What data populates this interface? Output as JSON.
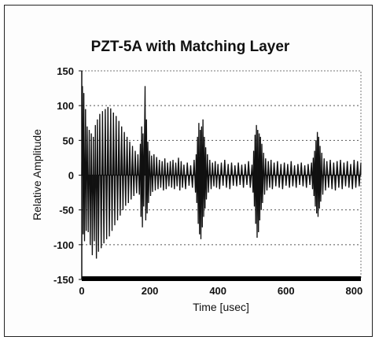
{
  "chart_data": {
    "type": "line",
    "title": "PZT-5A with Matching Layer",
    "xlabel": "Time [usec]",
    "ylabel": "Relative Amplitude",
    "xlim": [
      0,
      820
    ],
    "ylim": [
      -150,
      150
    ],
    "x_ticks": [
      "0",
      "200",
      "400",
      "600",
      "800"
    ],
    "y_ticks": [
      "150",
      "100",
      "50",
      "0",
      "-50",
      "-100",
      "-150"
    ],
    "grid": "horizontal dotted",
    "legend": "none",
    "series": [
      {
        "color": "#111111",
        "points": [
          [
            0,
            0
          ],
          [
            2,
            128
          ],
          [
            4,
            -85
          ],
          [
            6,
            118
          ],
          [
            8,
            -95
          ],
          [
            11,
            95
          ],
          [
            13,
            -80
          ],
          [
            16,
            70
          ],
          [
            19,
            -82
          ],
          [
            22,
            65
          ],
          [
            25,
            -100
          ],
          [
            28,
            60
          ],
          [
            31,
            -115
          ],
          [
            34,
            55
          ],
          [
            37,
            -95
          ],
          [
            40,
            72
          ],
          [
            43,
            -120
          ],
          [
            46,
            80
          ],
          [
            49,
            -110
          ],
          [
            53,
            88
          ],
          [
            57,
            -105
          ],
          [
            61,
            92
          ],
          [
            65,
            -98
          ],
          [
            69,
            95
          ],
          [
            73,
            -92
          ],
          [
            77,
            98
          ],
          [
            81,
            -88
          ],
          [
            85,
            96
          ],
          [
            89,
            -80
          ],
          [
            93,
            90
          ],
          [
            97,
            -72
          ],
          [
            101,
            85
          ],
          [
            105,
            -65
          ],
          [
            109,
            78
          ],
          [
            113,
            -58
          ],
          [
            117,
            70
          ],
          [
            121,
            -50
          ],
          [
            125,
            62
          ],
          [
            129,
            -44
          ],
          [
            133,
            55
          ],
          [
            137,
            -40
          ],
          [
            141,
            48
          ],
          [
            145,
            -35
          ],
          [
            149,
            42
          ],
          [
            153,
            -30
          ],
          [
            157,
            35
          ],
          [
            161,
            -26
          ],
          [
            165,
            30
          ],
          [
            169,
            -28
          ],
          [
            172,
            45
          ],
          [
            174,
            -60
          ],
          [
            176,
            70
          ],
          [
            178,
            -75
          ],
          [
            180,
            60
          ],
          [
            182,
            -45
          ],
          [
            184,
            50
          ],
          [
            186,
            128
          ],
          [
            188,
            -65
          ],
          [
            190,
            80
          ],
          [
            192,
            -55
          ],
          [
            194,
            48
          ],
          [
            196,
            -40
          ],
          [
            199,
            35
          ],
          [
            202,
            -30
          ],
          [
            205,
            28
          ],
          [
            208,
            -24
          ],
          [
            212,
            30
          ],
          [
            216,
            -22
          ],
          [
            220,
            26
          ],
          [
            224,
            -20
          ],
          [
            228,
            22
          ],
          [
            232,
            -18
          ],
          [
            236,
            20
          ],
          [
            240,
            -22
          ],
          [
            244,
            24
          ],
          [
            248,
            -20
          ],
          [
            252,
            18
          ],
          [
            256,
            -16
          ],
          [
            260,
            20
          ],
          [
            264,
            -18
          ],
          [
            268,
            22
          ],
          [
            272,
            -20
          ],
          [
            276,
            18
          ],
          [
            280,
            -16
          ],
          [
            284,
            25
          ],
          [
            288,
            -22
          ],
          [
            292,
            20
          ],
          [
            296,
            -18
          ],
          [
            300,
            15
          ],
          [
            305,
            -20
          ],
          [
            310,
            18
          ],
          [
            315,
            -15
          ],
          [
            320,
            14
          ],
          [
            325,
            -18
          ],
          [
            330,
            22
          ],
          [
            334,
            -25
          ],
          [
            336,
            30
          ],
          [
            338,
            -40
          ],
          [
            340,
            55
          ],
          [
            342,
            -70
          ],
          [
            344,
            75
          ],
          [
            346,
            -85
          ],
          [
            348,
            65
          ],
          [
            350,
            -92
          ],
          [
            352,
            70
          ],
          [
            354,
            -75
          ],
          [
            356,
            80
          ],
          [
            358,
            -60
          ],
          [
            360,
            55
          ],
          [
            362,
            -48
          ],
          [
            364,
            40
          ],
          [
            366,
            -35
          ],
          [
            369,
            30
          ],
          [
            372,
            -25
          ],
          [
            376,
            22
          ],
          [
            380,
            -20
          ],
          [
            384,
            18
          ],
          [
            388,
            -16
          ],
          [
            392,
            20
          ],
          [
            396,
            -18
          ],
          [
            400,
            16
          ],
          [
            405,
            -20
          ],
          [
            410,
            18
          ],
          [
            415,
            -15
          ],
          [
            420,
            22
          ],
          [
            425,
            -18
          ],
          [
            430,
            16
          ],
          [
            435,
            -20
          ],
          [
            440,
            18
          ],
          [
            445,
            -15
          ],
          [
            450,
            14
          ],
          [
            455,
            -16
          ],
          [
            460,
            18
          ],
          [
            465,
            -14
          ],
          [
            470,
            15
          ],
          [
            475,
            -18
          ],
          [
            480,
            16
          ],
          [
            485,
            -14
          ],
          [
            490,
            20
          ],
          [
            495,
            -18
          ],
          [
            500,
            15
          ],
          [
            503,
            -25
          ],
          [
            505,
            35
          ],
          [
            507,
            -45
          ],
          [
            509,
            58
          ],
          [
            511,
            -70
          ],
          [
            513,
            72
          ],
          [
            515,
            -90
          ],
          [
            517,
            65
          ],
          [
            519,
            -82
          ],
          [
            521,
            60
          ],
          [
            523,
            -65
          ],
          [
            525,
            55
          ],
          [
            527,
            -50
          ],
          [
            529,
            45
          ],
          [
            531,
            -40
          ],
          [
            534,
            32
          ],
          [
            537,
            -28
          ],
          [
            540,
            24
          ],
          [
            544,
            -22
          ],
          [
            548,
            20
          ],
          [
            552,
            -18
          ],
          [
            556,
            22
          ],
          [
            560,
            -20
          ],
          [
            565,
            18
          ],
          [
            570,
            -16
          ],
          [
            575,
            20
          ],
          [
            580,
            -18
          ],
          [
            585,
            16
          ],
          [
            590,
            -20
          ],
          [
            595,
            18
          ],
          [
            600,
            -15
          ],
          [
            605,
            16
          ],
          [
            610,
            -18
          ],
          [
            615,
            20
          ],
          [
            620,
            -16
          ],
          [
            625,
            14
          ],
          [
            630,
            -18
          ],
          [
            635,
            16
          ],
          [
            640,
            -14
          ],
          [
            645,
            18
          ],
          [
            650,
            -16
          ],
          [
            655,
            14
          ],
          [
            660,
            -18
          ],
          [
            665,
            16
          ],
          [
            670,
            -14
          ],
          [
            675,
            18
          ],
          [
            678,
            -20
          ],
          [
            680,
            25
          ],
          [
            682,
            -30
          ],
          [
            684,
            35
          ],
          [
            686,
            -45
          ],
          [
            688,
            50
          ],
          [
            690,
            -55
          ],
          [
            692,
            62
          ],
          [
            694,
            -60
          ],
          [
            696,
            55
          ],
          [
            698,
            -48
          ],
          [
            700,
            42
          ],
          [
            702,
            -38
          ],
          [
            705,
            32
          ],
          [
            708,
            -28
          ],
          [
            712,
            24
          ],
          [
            716,
            -22
          ],
          [
            720,
            20
          ],
          [
            725,
            -18
          ],
          [
            730,
            22
          ],
          [
            735,
            -20
          ],
          [
            740,
            18
          ],
          [
            745,
            -22
          ],
          [
            750,
            20
          ],
          [
            755,
            -18
          ],
          [
            760,
            22
          ],
          [
            765,
            -20
          ],
          [
            770,
            18
          ],
          [
            775,
            -16
          ],
          [
            780,
            20
          ],
          [
            785,
            -18
          ],
          [
            790,
            16
          ],
          [
            795,
            -20
          ],
          [
            800,
            22
          ],
          [
            805,
            -18
          ],
          [
            810,
            20
          ],
          [
            815,
            -16
          ],
          [
            820,
            18
          ]
        ]
      }
    ]
  }
}
